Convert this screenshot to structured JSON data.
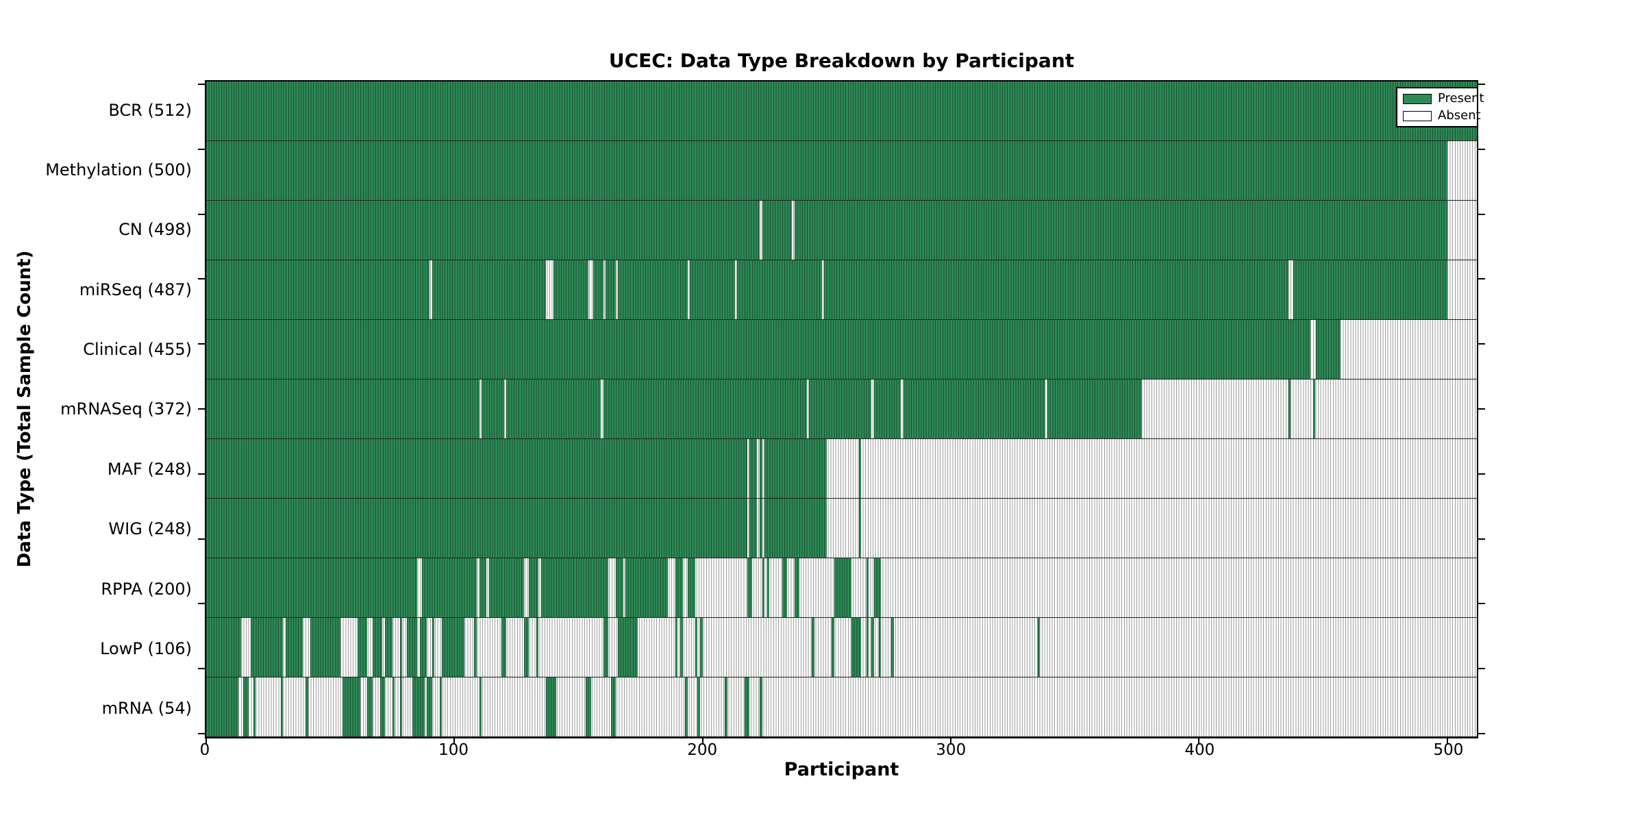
{
  "title": "UCEC: Data Type Breakdown by Participant",
  "chart_data": {
    "type": "heatmap",
    "title": "UCEC: Data Type Breakdown by Participant",
    "xlabel": "Participant",
    "ylabel": "Data Type (Total Sample Count)",
    "xlim": [
      0,
      512
    ],
    "xticks": [
      0,
      100,
      200,
      300,
      400,
      500
    ],
    "grid": false,
    "legend": {
      "position": "upper right",
      "entries": [
        {
          "label": "Present",
          "color": "#2e8b57"
        },
        {
          "label": "Absent",
          "color": "#ffffff"
        }
      ]
    },
    "colors": {
      "present": "#2e8b57",
      "absent": "#ffffff",
      "bar_edge_on_present": "rgba(0,0,0,0.45)",
      "bar_edge_on_absent": "#9a9a9a"
    },
    "rows": [
      {
        "label": "BCR (512)",
        "datatype": "BCR",
        "count": 512,
        "present": [
          [
            0,
            512
          ]
        ]
      },
      {
        "label": "Methylation (500)",
        "datatype": "Methylation",
        "count": 500,
        "present": [
          [
            0,
            500
          ]
        ]
      },
      {
        "label": "CN (498)",
        "datatype": "CN",
        "count": 498,
        "present": [
          [
            0,
            223
          ],
          [
            224,
            236
          ],
          [
            237,
            500
          ]
        ]
      },
      {
        "label": "miRSeq (487)",
        "datatype": "miRSeq",
        "count": 487,
        "present": [
          [
            0,
            90
          ],
          [
            91,
            137
          ],
          [
            140,
            154
          ],
          [
            156,
            160
          ],
          [
            161,
            165
          ],
          [
            166,
            194
          ],
          [
            195,
            213
          ],
          [
            214,
            248
          ],
          [
            249,
            436
          ],
          [
            438,
            500
          ]
        ]
      },
      {
        "label": "Clinical (455)",
        "datatype": "Clinical",
        "count": 455,
        "present": [
          [
            0,
            445
          ],
          [
            447,
            457
          ]
        ]
      },
      {
        "label": "mRNASeq (372)",
        "datatype": "mRNASeq",
        "count": 372,
        "present": [
          [
            0,
            110
          ],
          [
            111,
            120
          ],
          [
            121,
            159
          ],
          [
            160,
            242
          ],
          [
            243,
            268
          ],
          [
            269,
            280
          ],
          [
            281,
            338
          ],
          [
            339,
            377
          ],
          [
            436,
            437
          ],
          [
            446,
            447
          ]
        ]
      },
      {
        "label": "MAF (248)",
        "datatype": "MAF",
        "count": 248,
        "present": [
          [
            0,
            218
          ],
          [
            219,
            222
          ],
          [
            223,
            224
          ],
          [
            225,
            250
          ],
          [
            263,
            264
          ]
        ]
      },
      {
        "label": "WIG (248)",
        "datatype": "WIG",
        "count": 248,
        "present": [
          [
            0,
            218
          ],
          [
            219,
            222
          ],
          [
            223,
            224
          ],
          [
            225,
            250
          ],
          [
            263,
            264
          ]
        ]
      },
      {
        "label": "RPPA (200)",
        "datatype": "RPPA",
        "count": 200,
        "present": [
          [
            0,
            85
          ],
          [
            87,
            109
          ],
          [
            110,
            113
          ],
          [
            114,
            128
          ],
          [
            130,
            134
          ],
          [
            135,
            162
          ],
          [
            165,
            168
          ],
          [
            169,
            186
          ],
          [
            189,
            192
          ],
          [
            194,
            197
          ],
          [
            218,
            220
          ],
          [
            224,
            225
          ],
          [
            226,
            227
          ],
          [
            232,
            234
          ],
          [
            237,
            239
          ],
          [
            253,
            260
          ],
          [
            266,
            267
          ],
          [
            269,
            272
          ]
        ]
      },
      {
        "label": "LowP (106)",
        "datatype": "LowP",
        "count": 106,
        "present": [
          [
            0,
            14
          ],
          [
            18,
            31
          ],
          [
            32,
            39
          ],
          [
            42,
            54
          ],
          [
            61,
            65
          ],
          [
            67,
            71
          ],
          [
            72,
            75
          ],
          [
            78,
            79
          ],
          [
            81,
            85
          ],
          [
            86,
            89
          ],
          [
            91,
            92
          ],
          [
            95,
            104
          ],
          [
            108,
            109
          ],
          [
            119,
            121
          ],
          [
            128,
            130
          ],
          [
            133,
            134
          ],
          [
            160,
            162
          ],
          [
            166,
            174
          ],
          [
            189,
            190
          ],
          [
            191,
            192
          ],
          [
            197,
            198
          ],
          [
            199,
            200
          ],
          [
            244,
            245
          ],
          [
            252,
            253
          ],
          [
            260,
            264
          ],
          [
            266,
            267
          ],
          [
            268,
            269
          ],
          [
            271,
            272
          ],
          [
            276,
            277
          ],
          [
            335,
            336
          ]
        ]
      },
      {
        "label": "mRNA (54)",
        "datatype": "mRNA",
        "count": 54,
        "present": [
          [
            0,
            13
          ],
          [
            15,
            17
          ],
          [
            19,
            20
          ],
          [
            30,
            31
          ],
          [
            40,
            41
          ],
          [
            55,
            62
          ],
          [
            65,
            67
          ],
          [
            70,
            72
          ],
          [
            75,
            76
          ],
          [
            78,
            79
          ],
          [
            83,
            88
          ],
          [
            89,
            91
          ],
          [
            94,
            95
          ],
          [
            110,
            111
          ],
          [
            137,
            141
          ],
          [
            153,
            155
          ],
          [
            163,
            165
          ],
          [
            193,
            194
          ],
          [
            198,
            199
          ],
          [
            209,
            210
          ],
          [
            217,
            219
          ],
          [
            223,
            224
          ]
        ]
      }
    ]
  }
}
